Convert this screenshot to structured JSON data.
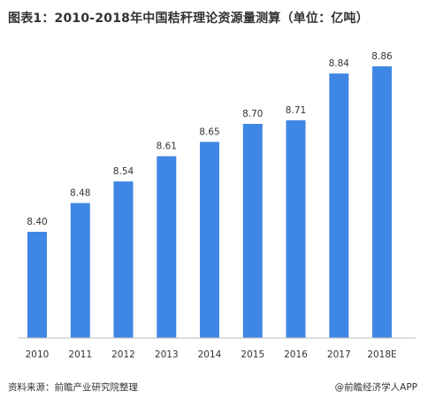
{
  "title": "图表1：2010-2018年中国秸秆理论资源量测算（单位：亿吨）",
  "source": "资料来源：前瞻产业研究院整理",
  "credit": "@前瞻经济学人APP",
  "colors": {
    "bar": "#3f87e4",
    "text": "#333333",
    "axis": "#bcbcbc"
  },
  "chart_data": {
    "type": "bar",
    "title": "图表1：2010-2018年中国秸秆理论资源量测算（单位：亿吨）",
    "categories": [
      "2010",
      "2011",
      "2012",
      "2013",
      "2014",
      "2015",
      "2016",
      "2017",
      "2018E"
    ],
    "values": [
      8.4,
      8.48,
      8.54,
      8.61,
      8.65,
      8.7,
      8.71,
      8.84,
      8.86
    ],
    "value_labels": [
      "8.40",
      "8.48",
      "8.54",
      "8.61",
      "8.65",
      "8.70",
      "8.71",
      "8.84",
      "8.86"
    ],
    "xlabel": "",
    "ylabel": "",
    "grid": false,
    "legend": "none"
  }
}
